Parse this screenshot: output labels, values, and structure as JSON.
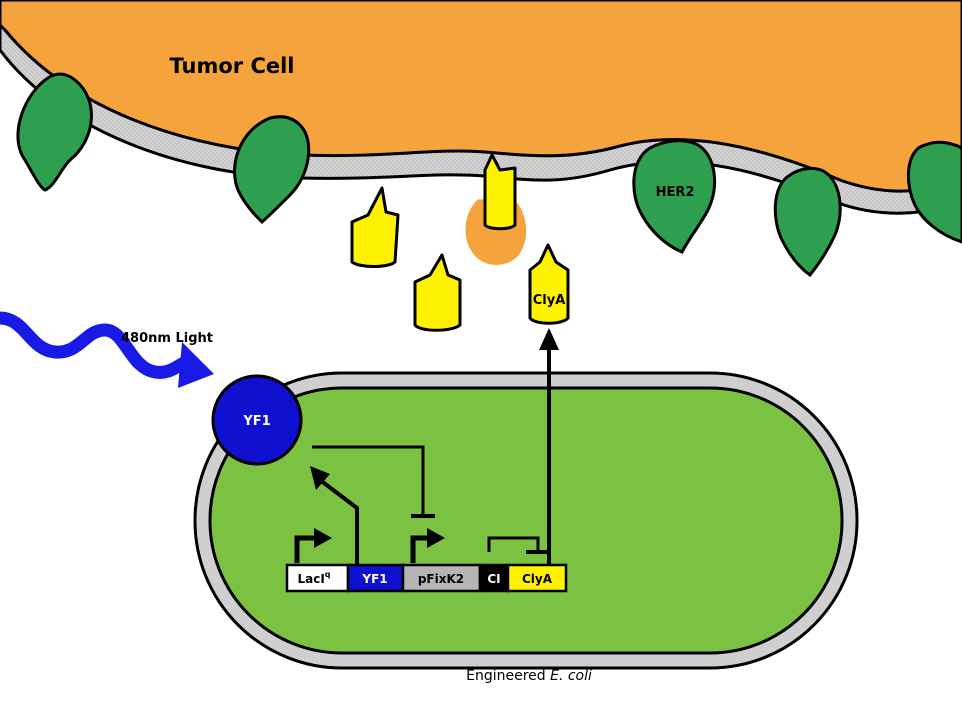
{
  "tumor": {
    "title": "Tumor Cell",
    "receptor_label": "HER2"
  },
  "light": {
    "label": "480nm Light"
  },
  "receptor": {
    "name": "YF1"
  },
  "protein": {
    "label": "ClyA"
  },
  "genes": {
    "laci_base": "LacI",
    "laci_sup": "q",
    "yf1": "YF1",
    "pfixk2": "pFixK2",
    "ci": "CI",
    "clya": "ClyA"
  },
  "caption": {
    "prefix": "Engineered ",
    "organism": "E. coli"
  },
  "colors": {
    "tumor": "#F5A33C",
    "membrane": "#CFCFCF",
    "receptor": "#2E9E4F",
    "toxin": "#FFF200",
    "bacterium": "#7BC142",
    "light": "#1A1AE6",
    "yf1_gene": "#1010D0",
    "pfixk2_gene": "#B5B5B5",
    "ci_gene": "#000000"
  }
}
